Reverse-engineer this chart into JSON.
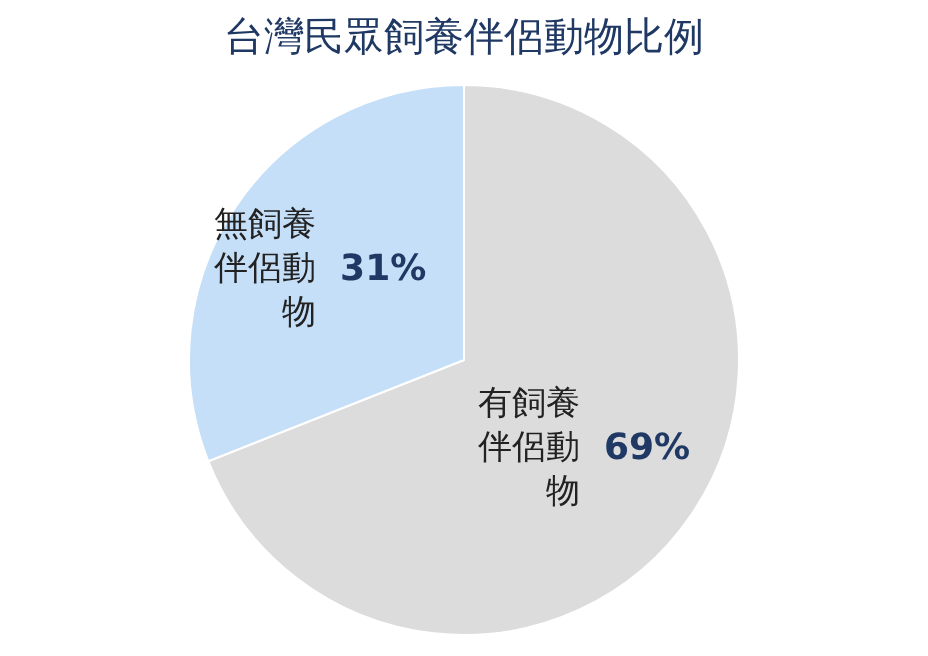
{
  "chart_data": {
    "type": "pie",
    "title": "台灣民眾飼養伴侶動物比例",
    "categories": [
      "有飼養伴侶動物",
      "無飼養伴侶動物"
    ],
    "values": [
      69,
      31
    ],
    "value_labels": [
      "69%",
      "31%"
    ],
    "colors": [
      "#dcdcdc",
      "#c5dff8"
    ],
    "legend": false
  }
}
